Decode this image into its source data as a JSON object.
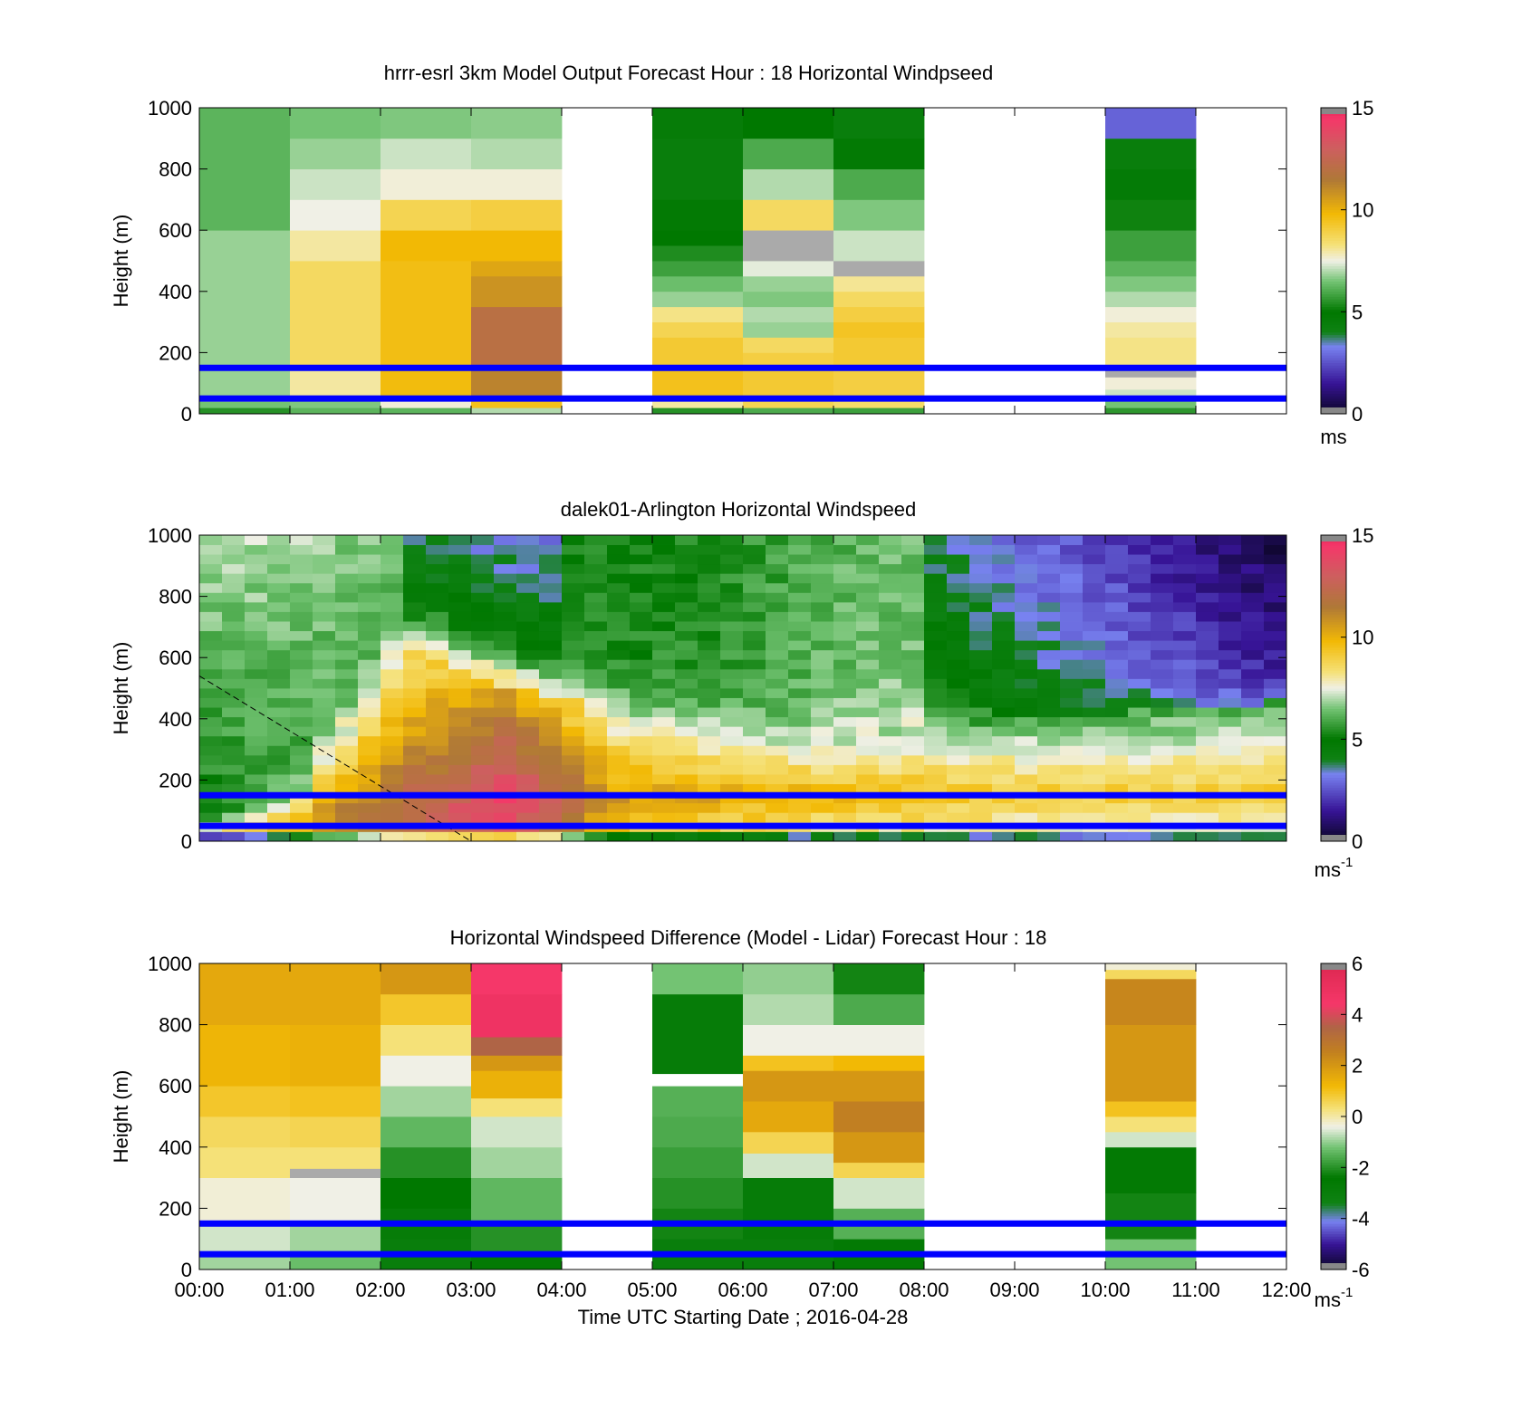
{
  "figure": {
    "xlabel": "Time UTC  Starting Date ; 2016-04-28",
    "x_tick_labels": [
      "00:00",
      "01:00",
      "02:00",
      "03:00",
      "04:00",
      "05:00",
      "06:00",
      "07:00",
      "08:00",
      "09:00",
      "10:00",
      "11:00",
      "12:00"
    ],
    "boundary_line_color": "#0000ff",
    "boundary_line_heights": [
      150,
      50
    ]
  },
  "chart_data": [
    {
      "type": "heatmap",
      "title": "hrrr-esrl 3km Model Output   Forecast Hour : 18 Horizontal Windpseed",
      "ylabel": "Height (m)",
      "y_ticks": [
        "0",
        "200",
        "400",
        "600",
        "800",
        "1000"
      ],
      "ylim": [
        0,
        1000
      ],
      "xlim": [
        "00:00",
        "12:00"
      ],
      "colorbar": {
        "min": 0,
        "max": 15,
        "ticks": [
          "0",
          "5",
          "10",
          "15"
        ],
        "unit": "ms"
      },
      "columns": [
        {
          "start": "00:00",
          "end": "01:00",
          "levels": [
            [
              0,
              20,
              5.5
            ],
            [
              20,
              40,
              6.5
            ],
            [
              40,
              150,
              6.8
            ],
            [
              150,
              600,
              6.8
            ],
            [
              600,
              1000,
              6.2
            ]
          ]
        },
        {
          "start": "01:00",
          "end": "02:00",
          "levels": [
            [
              0,
              20,
              6.2
            ],
            [
              20,
              50,
              6.6
            ],
            [
              50,
              150,
              8.0
            ],
            [
              150,
              500,
              8.6
            ],
            [
              500,
              600,
              8.0
            ],
            [
              600,
              700,
              7.5
            ],
            [
              700,
              800,
              7.2
            ],
            [
              800,
              900,
              6.8
            ],
            [
              900,
              1000,
              6.5
            ]
          ]
        },
        {
          "start": "02:00",
          "end": "03:00",
          "levels": [
            [
              0,
              20,
              6.2
            ],
            [
              20,
              60,
              7.6
            ],
            [
              60,
              150,
              9.7
            ],
            [
              150,
              500,
              9.6
            ],
            [
              500,
              600,
              9.8
            ],
            [
              600,
              700,
              8.8
            ],
            [
              700,
              800,
              7.6
            ],
            [
              800,
              900,
              7.2
            ],
            [
              900,
              1000,
              6.6
            ]
          ]
        },
        {
          "start": "03:00",
          "end": "04:00",
          "levels": [
            [
              0,
              20,
              7.0
            ],
            [
              20,
              60,
              9.5
            ],
            [
              60,
              150,
              11.2
            ],
            [
              150,
              350,
              12.0
            ],
            [
              350,
              450,
              10.8
            ],
            [
              450,
              500,
              10.3
            ],
            [
              500,
              600,
              9.8
            ],
            [
              600,
              700,
              9.0
            ],
            [
              700,
              800,
              7.6
            ],
            [
              800,
              900,
              7.0
            ],
            [
              900,
              1000,
              6.7
            ]
          ]
        },
        {
          "start": "05:00",
          "end": "06:00",
          "levels": [
            [
              0,
              20,
              5.5
            ],
            [
              20,
              60,
              8.0
            ],
            [
              60,
              150,
              9.5
            ],
            [
              150,
              250,
              9.2
            ],
            [
              250,
              300,
              8.8
            ],
            [
              300,
              350,
              8.2
            ],
            [
              350,
              400,
              6.8
            ],
            [
              400,
              450,
              6.4
            ],
            [
              450,
              500,
              5.8
            ],
            [
              500,
              550,
              5.4
            ],
            [
              550,
              600,
              5.0
            ],
            [
              600,
              700,
              4.8
            ],
            [
              700,
              900,
              4.4
            ],
            [
              900,
              1000,
              4.6
            ]
          ]
        },
        {
          "start": "06:00",
          "end": "07:00",
          "levels": [
            [
              0,
              20,
              6.0
            ],
            [
              20,
              60,
              8.8
            ],
            [
              60,
              150,
              9.2
            ],
            [
              150,
              200,
              9.0
            ],
            [
              200,
              250,
              8.6
            ],
            [
              250,
              300,
              6.8
            ],
            [
              300,
              350,
              7.0
            ],
            [
              350,
              400,
              6.6
            ],
            [
              400,
              450,
              6.8
            ],
            [
              450,
              500,
              7.4
            ],
            [
              500,
              600,
              -1
            ],
            [
              600,
              700,
              8.6
            ],
            [
              700,
              800,
              7.0
            ],
            [
              800,
              900,
              6.0
            ],
            [
              900,
              1000,
              5.0
            ]
          ]
        },
        {
          "start": "07:00",
          "end": "08:00",
          "levels": [
            [
              0,
              20,
              5.8
            ],
            [
              20,
              60,
              8.5
            ],
            [
              60,
              150,
              9.0
            ],
            [
              150,
              250,
              9.2
            ],
            [
              250,
              300,
              9.4
            ],
            [
              300,
              350,
              9.0
            ],
            [
              350,
              400,
              8.6
            ],
            [
              400,
              450,
              8.1
            ],
            [
              450,
              500,
              -1
            ],
            [
              500,
              600,
              7.2
            ],
            [
              600,
              700,
              6.6
            ],
            [
              700,
              800,
              6.0
            ],
            [
              800,
              900,
              4.8
            ],
            [
              900,
              1000,
              4.4
            ]
          ]
        },
        {
          "start": "10:00",
          "end": "11:00",
          "levels": [
            [
              0,
              20,
              5.6
            ],
            [
              20,
              50,
              6.5
            ],
            [
              50,
              80,
              7.2
            ],
            [
              80,
              120,
              7.6
            ],
            [
              120,
              150,
              -1
            ],
            [
              150,
              250,
              8.2
            ],
            [
              250,
              300,
              8.0
            ],
            [
              300,
              350,
              7.6
            ],
            [
              350,
              400,
              7.0
            ],
            [
              400,
              450,
              6.6
            ],
            [
              450,
              500,
              6.2
            ],
            [
              500,
              600,
              5.8
            ],
            [
              600,
              700,
              5.2
            ],
            [
              700,
              800,
              4.7
            ],
            [
              800,
              900,
              4.4
            ],
            [
              900,
              1000,
              2.8
            ]
          ]
        }
      ]
    },
    {
      "type": "heatmap",
      "title": "dalek01-Arlington  Horizontal Windspeed",
      "ylabel": "Height (m)",
      "y_ticks": [
        "0",
        "200",
        "400",
        "600",
        "800",
        "1000"
      ],
      "ylim": [
        0,
        1000
      ],
      "xlim": [
        "00:00",
        "12:00"
      ],
      "colorbar": {
        "min": 0,
        "max": 15,
        "ticks": [
          "0",
          "5",
          "10",
          "15"
        ],
        "unit": "ms",
        "unit_exponent": "-1"
      },
      "dashed_line": [
        [
          0,
          540
        ],
        [
          3,
          0
        ]
      ]
    },
    {
      "type": "heatmap",
      "title": "Horizontal Windspeed Difference (Model - Lidar) Forecast Hour : 18",
      "ylabel": "Height (m)",
      "y_ticks": [
        "0",
        "200",
        "400",
        "600",
        "800",
        "1000"
      ],
      "ylim": [
        0,
        1000
      ],
      "xlim": [
        "00:00",
        "12:00"
      ],
      "colorbar": {
        "min": -6,
        "max": 6,
        "ticks": [
          "-6",
          "-4",
          "-2",
          "0",
          "2",
          "4",
          "6"
        ],
        "unit": "ms",
        "unit_exponent": "-1"
      },
      "columns": [
        {
          "start": "00:00",
          "end": "01:00",
          "levels": [
            [
              0,
              50,
              -0.9
            ],
            [
              50,
              150,
              -0.6
            ],
            [
              150,
              300,
              -0.3
            ],
            [
              300,
              400,
              0.3
            ],
            [
              400,
              500,
              0.5
            ],
            [
              500,
              600,
              0.9
            ],
            [
              600,
              800,
              1.3
            ],
            [
              800,
              1000,
              1.6
            ]
          ]
        },
        {
          "start": "01:00",
          "end": "02:00",
          "levels": [
            [
              0,
              50,
              -1.3
            ],
            [
              50,
              150,
              -0.9
            ],
            [
              150,
              300,
              -0.4
            ],
            [
              300,
              330,
              -6.3
            ],
            [
              330,
              400,
              0.3
            ],
            [
              400,
              500,
              0.6
            ],
            [
              500,
              600,
              1.0
            ],
            [
              600,
              800,
              1.4
            ],
            [
              800,
              1000,
              1.6
            ]
          ]
        },
        {
          "start": "02:00",
          "end": "03:00",
          "levels": [
            [
              0,
              100,
              -3.0
            ],
            [
              100,
              200,
              -2.8
            ],
            [
              200,
              300,
              -2.4
            ],
            [
              300,
              400,
              -2.0
            ],
            [
              400,
              500,
              -1.4
            ],
            [
              500,
              600,
              -0.9
            ],
            [
              600,
              700,
              -0.4
            ],
            [
              700,
              800,
              0.3
            ],
            [
              800,
              900,
              0.9
            ],
            [
              900,
              1000,
              2.0
            ]
          ]
        },
        {
          "start": "03:00",
          "end": "04:00",
          "levels": [
            [
              0,
              50,
              -2.6
            ],
            [
              50,
              150,
              -2.0
            ],
            [
              150,
              300,
              -1.4
            ],
            [
              300,
              400,
              -0.9
            ],
            [
              400,
              500,
              -0.6
            ],
            [
              500,
              560,
              0.3
            ],
            [
              560,
              650,
              1.4
            ],
            [
              650,
              700,
              2.0
            ],
            [
              700,
              760,
              3.5
            ],
            [
              760,
              900,
              4.8
            ],
            [
              900,
              1000,
              4.4
            ]
          ]
        },
        {
          "start": "05:00",
          "end": "06:00",
          "levels": [
            [
              0,
              100,
              -3.0
            ],
            [
              100,
              200,
              -2.2
            ],
            [
              200,
              300,
              -2.0
            ],
            [
              300,
              400,
              -1.8
            ],
            [
              400,
              500,
              -1.6
            ],
            [
              500,
              600,
              -1.5
            ],
            [
              600,
              640,
              -9
            ],
            [
              640,
              900,
              -2.8
            ],
            [
              900,
              1000,
              -1.2
            ]
          ]
        },
        {
          "start": "06:00",
          "end": "07:00",
          "levels": [
            [
              0,
              100,
              -3.0
            ],
            [
              100,
              300,
              -2.8
            ],
            [
              300,
              380,
              -0.6
            ],
            [
              380,
              450,
              0.6
            ],
            [
              450,
              550,
              1.6
            ],
            [
              550,
              650,
              2.0
            ],
            [
              650,
              700,
              1.0
            ],
            [
              700,
              800,
              -0.4
            ],
            [
              800,
              900,
              -0.8
            ],
            [
              900,
              1000,
              -1.0
            ]
          ]
        },
        {
          "start": "07:00",
          "end": "08:00",
          "levels": [
            [
              0,
              100,
              -2.6
            ],
            [
              100,
              200,
              -1.5
            ],
            [
              200,
              300,
              -0.6
            ],
            [
              300,
              350,
              0.6
            ],
            [
              350,
              450,
              2.0
            ],
            [
              450,
              550,
              2.6
            ],
            [
              550,
              650,
              2.0
            ],
            [
              650,
              700,
              1.2
            ],
            [
              700,
              800,
              -0.4
            ],
            [
              800,
              900,
              -1.6
            ],
            [
              900,
              1000,
              -2.2
            ]
          ]
        },
        {
          "start": "10:00",
          "end": "11:00",
          "levels": [
            [
              0,
              100,
              -1.2
            ],
            [
              100,
              250,
              -2.2
            ],
            [
              250,
              400,
              -2.6
            ],
            [
              400,
              450,
              -0.6
            ],
            [
              450,
              500,
              0.3
            ],
            [
              500,
              550,
              1.0
            ],
            [
              550,
              800,
              2.0
            ],
            [
              800,
              950,
              2.4
            ],
            [
              950,
              980,
              0.5
            ],
            [
              980,
              1000,
              -0.3
            ]
          ]
        }
      ]
    }
  ]
}
